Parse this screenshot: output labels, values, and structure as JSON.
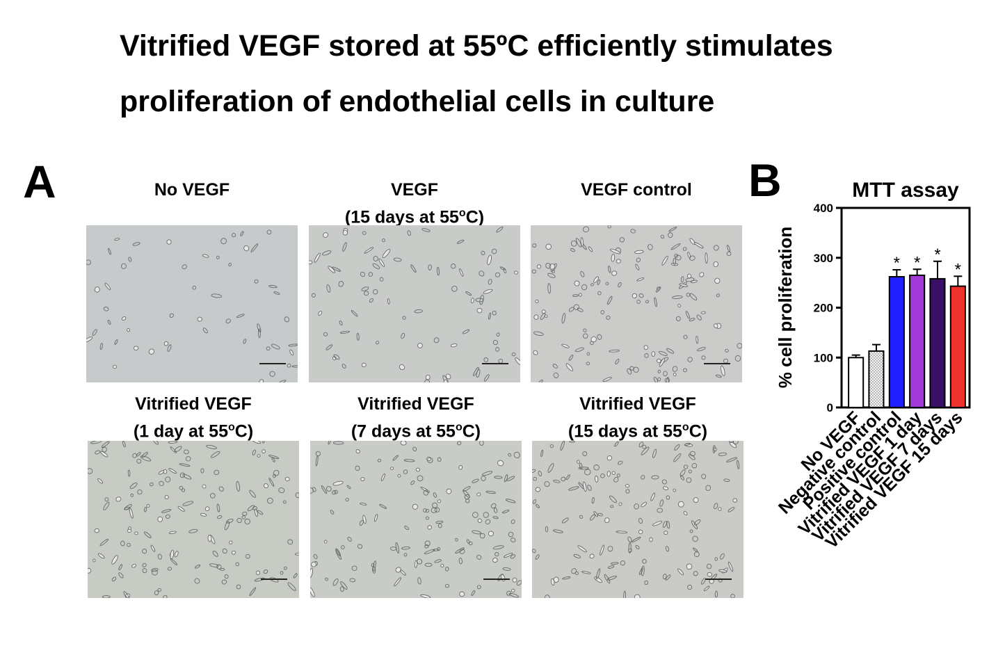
{
  "title": {
    "line1": "Vitrified VEGF stored at 55ºC efficiently stimulates",
    "line2": "proliferation of endothelial cells in culture"
  },
  "panelA": {
    "letter": "A",
    "images": [
      {
        "caption": [
          "No VEGF"
        ],
        "bg": "#c7cacb"
      },
      {
        "caption": [
          "VEGF",
          "(15 days at 55",
          "o",
          "C)"
        ],
        "bg": "#c9cbc8"
      },
      {
        "caption": [
          "VEGF control"
        ],
        "bg": "#cbccc9"
      },
      {
        "caption": [
          "Vitrified VEGF",
          "(1 day at 55",
          "o",
          "C)"
        ],
        "bg": "#c8cbc4"
      },
      {
        "caption": [
          "Vitrified VEGF",
          "(7 days at 55",
          "o",
          "C)"
        ],
        "bg": "#c9cbc6"
      },
      {
        "caption": [
          "Vitrified VEGF",
          "(15 days at 55",
          "o",
          "C)"
        ],
        "bg": "#cacbc6"
      }
    ]
  },
  "panelB": {
    "letter": "B"
  },
  "chart_data": {
    "type": "bar",
    "title": "MTT assay",
    "ylabel": "% cell proliferation",
    "xlabel": "",
    "ylim": [
      0,
      400
    ],
    "yticks": [
      0,
      100,
      200,
      300,
      400
    ],
    "categories": [
      "No VEGF",
      "Negative control",
      "Positive control",
      "Vitrified VEGF 1 day",
      "Vitrified VEGF 7 days",
      "Vitrified VEGF 15 days"
    ],
    "values": [
      100,
      113,
      262,
      265,
      258,
      243
    ],
    "errors": [
      5,
      13,
      14,
      12,
      35,
      20
    ],
    "significance": [
      "",
      "",
      "*",
      "*",
      "*",
      "*"
    ],
    "colors": [
      "#ffffff",
      "#dcdcdc",
      "#1f1fff",
      "#a339d6",
      "#3a0f66",
      "#f0302a"
    ],
    "grid": false,
    "legend": "none"
  }
}
